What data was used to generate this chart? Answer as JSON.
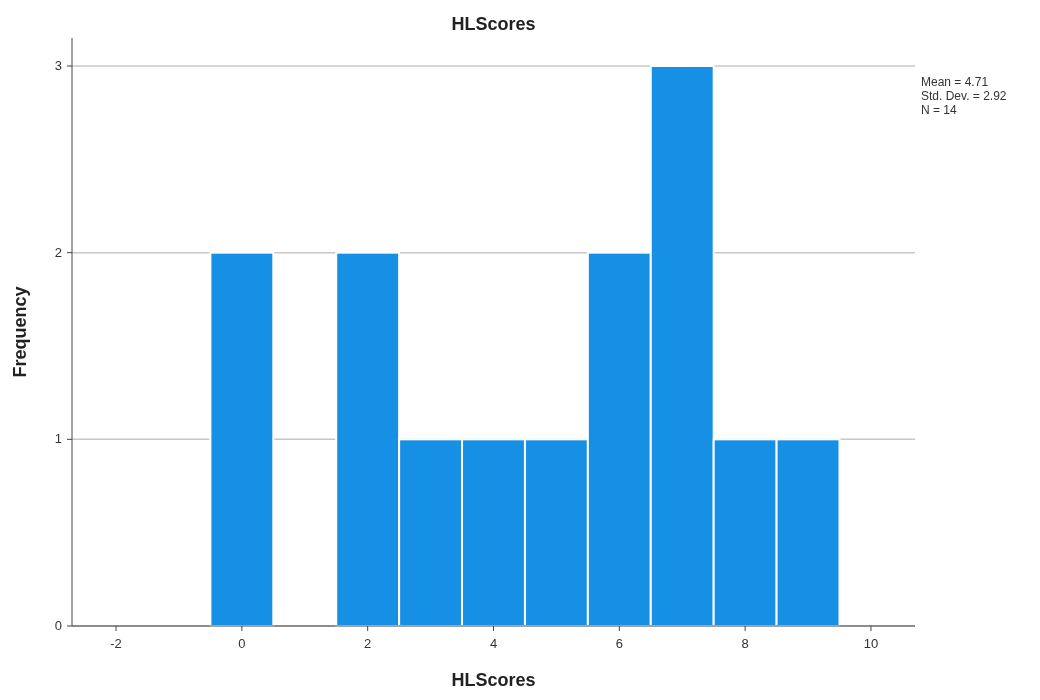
{
  "chart_data": {
    "type": "histogram",
    "title": "HLScores",
    "xlabel": "HLScores",
    "ylabel": "Frequency",
    "bins": [
      -0.5,
      0.5,
      1.5,
      2.5,
      3.5,
      4.5,
      5.5,
      6.5,
      7.5,
      8.5,
      9.5
    ],
    "values": [
      2,
      0,
      2,
      1,
      1,
      1,
      2,
      3,
      1,
      1
    ],
    "color": "#1690e4",
    "xlim": [
      -2.7,
      10.7
    ],
    "xticks": [
      -2,
      0,
      2,
      4,
      6,
      8,
      10
    ],
    "ylim": [
      0,
      3.15
    ],
    "yticks": [
      0,
      1,
      2,
      3
    ],
    "grid": "y",
    "annotations": [
      "Mean = 4.71",
      "Std. Dev. = 2.92",
      "N = 14"
    ]
  }
}
